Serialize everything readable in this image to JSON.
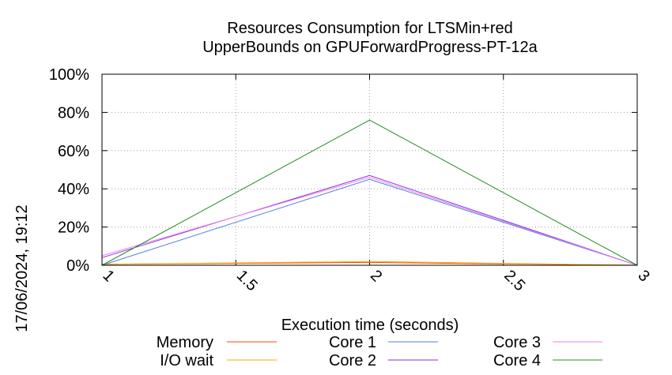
{
  "chart_data": {
    "type": "line",
    "title_lines": [
      "Resources Consumption for LTSMin+red",
      "UpperBounds on GPUForwardProgress-PT-12a"
    ],
    "xlabel": "Execution time (seconds)",
    "ylabel": "",
    "timestamp": "17/06/2024, 19:12",
    "xlim": [
      1,
      3
    ],
    "ylim": [
      0,
      100
    ],
    "x_ticks": [
      {
        "value": 1,
        "label": "1"
      },
      {
        "value": 1.5,
        "label": "1.5"
      },
      {
        "value": 2,
        "label": "2"
      },
      {
        "value": 2.5,
        "label": "2.5"
      },
      {
        "value": 3,
        "label": "3"
      }
    ],
    "y_ticks": [
      {
        "value": 0,
        "label": "0%"
      },
      {
        "value": 20,
        "label": "20%"
      },
      {
        "value": 40,
        "label": "40%"
      },
      {
        "value": 60,
        "label": "60%"
      },
      {
        "value": 80,
        "label": "80%"
      },
      {
        "value": 100,
        "label": "100%"
      }
    ],
    "grid": true,
    "x": [
      1,
      2,
      3
    ],
    "series": [
      {
        "name": "Memory",
        "color": "#ff4500",
        "values": [
          0.5,
          1.5,
          0
        ]
      },
      {
        "name": "I/O wait",
        "color": "#ffa500",
        "values": [
          0.5,
          2,
          0
        ]
      },
      {
        "name": "Core 1",
        "color": "#4f7fdf",
        "values": [
          0,
          45,
          0
        ]
      },
      {
        "name": "Core 2",
        "color": "#8a2be2",
        "values": [
          4,
          47,
          0
        ]
      },
      {
        "name": "Core 3",
        "color": "#ee82ee",
        "values": [
          5,
          46,
          0
        ]
      },
      {
        "name": "Core 4",
        "color": "#228b22",
        "values": [
          0,
          76,
          0
        ]
      }
    ],
    "legend_placement": "bottom"
  }
}
